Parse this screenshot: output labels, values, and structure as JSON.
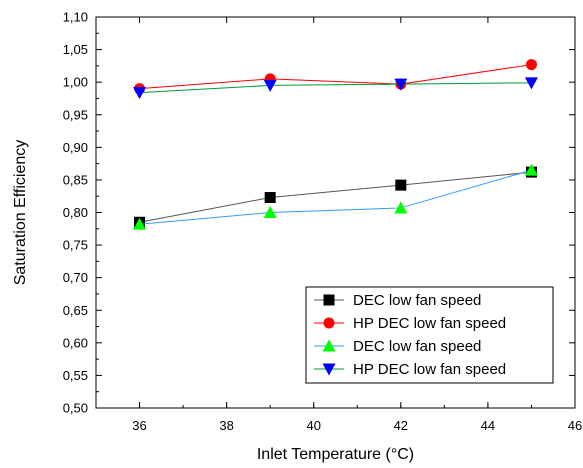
{
  "chart_data": {
    "type": "line",
    "xlabel": "Inlet Temperature (°C)",
    "ylabel": "Saturation Efficiency",
    "xlim": [
      35,
      46
    ],
    "ylim": [
      0.5,
      1.1
    ],
    "x_ticks": [
      "36",
      "38",
      "40",
      "42",
      "44",
      "46"
    ],
    "y_ticks": [
      "0,50",
      "0,55",
      "0,60",
      "0,65",
      "0,70",
      "0,75",
      "0,80",
      "0,85",
      "0,90",
      "0,95",
      "1,00",
      "1,05",
      "1,10"
    ],
    "grid": false,
    "legend_position": "bottom-right",
    "series": [
      {
        "name": "DEC low fan speed",
        "color": "#000000",
        "line_color": "#555555",
        "marker": "square",
        "x": [
          36,
          39,
          42,
          45
        ],
        "y": [
          0.785,
          0.823,
          0.842,
          0.862
        ]
      },
      {
        "name": "HP DEC low fan speed",
        "color": "#ff0000",
        "line_color": "#ff0000",
        "marker": "circle",
        "x": [
          36,
          39,
          42,
          45
        ],
        "y": [
          0.99,
          1.005,
          0.997,
          1.027
        ]
      },
      {
        "name": "DEC low fan speed",
        "color": "#00ff00",
        "line_color": "#3399ff",
        "marker": "triangle-up",
        "x": [
          36,
          39,
          42,
          45
        ],
        "y": [
          0.782,
          0.8,
          0.807,
          0.865
        ]
      },
      {
        "name": "HP DEC low fan speed",
        "color": "#0000ff",
        "line_color": "#009933",
        "marker": "triangle-down",
        "x": [
          36,
          39,
          42,
          45
        ],
        "y": [
          0.984,
          0.995,
          0.997,
          0.999
        ]
      }
    ]
  }
}
